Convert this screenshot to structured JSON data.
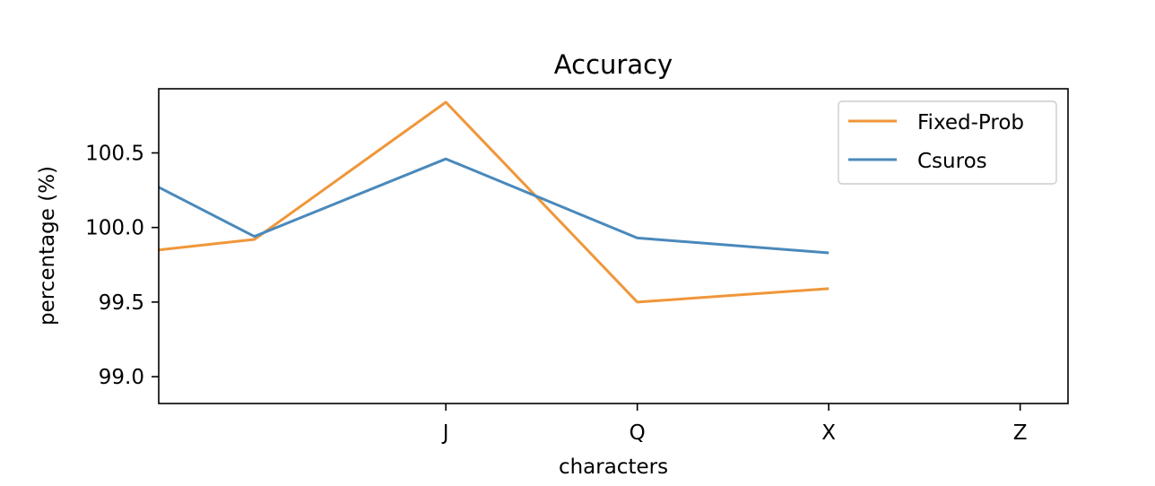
{
  "colors": {
    "fixed_prob": "#f0963a",
    "csuros": "#4a89bb"
  },
  "chart_data": {
    "type": "line",
    "title": "Accuracy",
    "xlabel": "characters",
    "ylabel": "percentage (%)",
    "x": [
      0,
      1,
      2,
      3,
      4
    ],
    "xlim": [
      -0.5,
      4.25
    ],
    "ylim": [
      98.82,
      100.93
    ],
    "xticks": [
      1,
      2,
      3,
      4
    ],
    "xtick_labels": [
      "J",
      "Q",
      "X",
      "Z"
    ],
    "yticks": [
      99.0,
      99.5,
      100.0,
      100.5
    ],
    "ytick_labels": [
      "99.0",
      "99.5",
      "100.0",
      "100.5"
    ],
    "grid": false,
    "legend_position": "top-right",
    "series": [
      {
        "name": "Fixed-Prob",
        "color": "#f0963a",
        "x": [
          -0.5,
          0,
          1,
          2,
          3
        ],
        "values": [
          99.85,
          99.92,
          100.84,
          99.5,
          99.59
        ]
      },
      {
        "name": "Csuros",
        "color": "#4a89bb",
        "x": [
          -0.5,
          0,
          1,
          2,
          3
        ],
        "values": [
          100.27,
          99.94,
          100.46,
          99.93,
          99.83
        ]
      }
    ]
  }
}
